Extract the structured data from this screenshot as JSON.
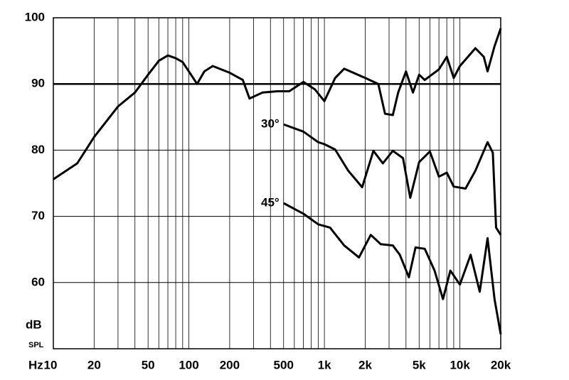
{
  "chart_data": {
    "type": "line",
    "xscale": "log",
    "xlim": [
      10,
      20000
    ],
    "ylim": [
      50,
      100
    ],
    "xlabel": "Hz",
    "ylabel": "dB",
    "ylabel_sub": "SPL",
    "xticks": [
      10,
      20,
      50,
      100,
      200,
      500,
      {
        "value": 1000,
        "label": "1k"
      },
      {
        "value": 2000,
        "label": "2k"
      },
      {
        "value": 5000,
        "label": "5k"
      },
      {
        "value": 10000,
        "label": "10k"
      },
      {
        "value": 20000,
        "label": "20k"
      }
    ],
    "yticks": [
      60,
      70,
      80,
      90,
      100
    ],
    "xgrid": [
      10,
      20,
      30,
      40,
      50,
      60,
      70,
      80,
      90,
      100,
      200,
      300,
      400,
      500,
      600,
      700,
      800,
      900,
      1000,
      2000,
      3000,
      4000,
      5000,
      6000,
      7000,
      8000,
      9000,
      10000,
      20000
    ],
    "highlight_y": 90,
    "series": [
      {
        "color": "#000000",
        "x": [
          10,
          15,
          20,
          30,
          40,
          50,
          60,
          70,
          80,
          90,
          100,
          115,
          130,
          150,
          200,
          250,
          280,
          350,
          450,
          550,
          700,
          850,
          1000,
          1200,
          1400,
          2000,
          2500,
          2800,
          3200,
          3500,
          4000,
          4500,
          5000,
          5500,
          7000,
          8000,
          9000,
          10000,
          13000,
          15000,
          16000,
          18000,
          20000
        ],
        "values": [
          75.6,
          78,
          82,
          86.6,
          88.7,
          91.4,
          93.5,
          94.3,
          93.9,
          93.3,
          91.9,
          90,
          91.9,
          92.7,
          91.7,
          90.6,
          87.8,
          88.7,
          88.9,
          88.9,
          90.3,
          89.2,
          87.4,
          90.9,
          92.3,
          90.9,
          90,
          85.5,
          85.3,
          88.7,
          91.9,
          88.7,
          91.4,
          90.6,
          92.2,
          94.1,
          90.9,
          92.7,
          95.4,
          94.1,
          91.9,
          95.7,
          98.4
        ]
      },
      {
        "name": "30°",
        "color": "#000000",
        "x": [
          500,
          700,
          900,
          1000,
          1200,
          1500,
          1900,
          2300,
          2700,
          3200,
          3800,
          4300,
          5000,
          6000,
          7000,
          8000,
          9000,
          11000,
          13000,
          16000,
          17500,
          18500,
          20000
        ],
        "values": [
          83.9,
          82.8,
          81.2,
          80.9,
          80.1,
          76.9,
          74.4,
          79.9,
          78,
          79.9,
          78.8,
          72.8,
          78.2,
          79.8,
          76,
          76.6,
          74.5,
          74.2,
          76.9,
          81.2,
          79.6,
          68.3,
          67.2
        ]
      },
      {
        "name": "45°",
        "color": "#000000",
        "x": [
          500,
          700,
          900,
          1100,
          1400,
          1800,
          2200,
          2600,
          3200,
          3600,
          4200,
          4700,
          5500,
          6500,
          7500,
          8500,
          10000,
          12000,
          14000,
          16000,
          18000,
          20000
        ],
        "values": [
          72,
          70.4,
          68.8,
          68.3,
          65.6,
          63.8,
          67.2,
          65.8,
          65.6,
          64.2,
          60.8,
          65.3,
          65.1,
          61.8,
          57.5,
          61.8,
          59.7,
          64.2,
          58.6,
          66.7,
          57.5,
          52.2
        ]
      }
    ]
  }
}
